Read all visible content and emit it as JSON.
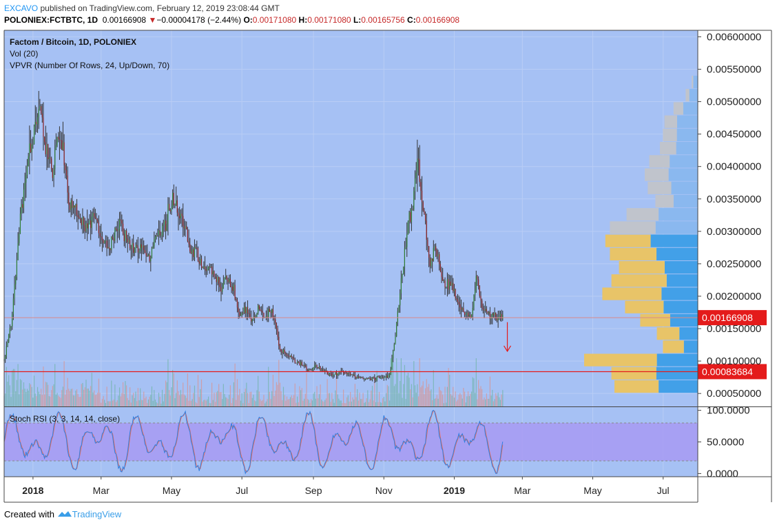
{
  "header": {
    "author": "EXCAVO",
    "published_text": "published on TradingView.com, February 12, 2019 23:08:44 GMT",
    "symbol": "POLONIEX:FCTBTC, 1D",
    "last": "0.00166908",
    "change_arrow": "▼",
    "change": "−0.00004178 (−2.44%)",
    "o_label": "O:",
    "o_value": "0.00171080",
    "h_label": "H:",
    "h_value": "0.00171080",
    "l_label": "L:",
    "l_value": "0.00165756",
    "c_label": "C:",
    "c_value": "0.00166908"
  },
  "legend": {
    "title": "Factom / Bitcoin, 1D, POLONIEX",
    "vol": "Vol (20)",
    "vpvr": "VPVR (Number Of Rows, 24, Up/Down, 70)",
    "stoch": "Stoch RSI (3, 3, 14, 14, close)"
  },
  "footer": {
    "created_with": "Created with",
    "brand": "TradingView"
  },
  "colors": {
    "background": "#a6c1f4",
    "up_candle": "#2e7d32",
    "down_candle": "#8b1f1f",
    "wick": "#333333",
    "vpvr_up_value_area": "#42a0e8",
    "vpvr_down_value_area": "#e8c468",
    "vpvr_up": "#8ab8ef",
    "vpvr_down": "#c0c4cc",
    "last_price_tag": "#e41b1b",
    "horizontal_line": "#e41b1b",
    "stoch_band": "#a79af2",
    "stoch_k": "#2f7fe0",
    "stoch_d": "#e86a5a"
  },
  "chart_data": {
    "type": "candlestick",
    "symbol": "FCTBTC",
    "exchange": "POLONIEX",
    "timeframe": "1D",
    "price_axis": {
      "ylim": [
        0.0003,
        0.0061
      ],
      "ticks": [
        "0.00600000",
        "0.00550000",
        "0.00500000",
        "0.00450000",
        "0.00400000",
        "0.00350000",
        "0.00300000",
        "0.00250000",
        "0.00200000",
        "0.00150000",
        "0.00100000",
        "0.00050000"
      ],
      "tick_values": [
        0.006,
        0.0055,
        0.005,
        0.0045,
        0.004,
        0.0035,
        0.003,
        0.0025,
        0.002,
        0.0015,
        0.001,
        0.0005
      ]
    },
    "time_axis": {
      "labels": [
        "2018",
        "Mar",
        "May",
        "Jul",
        "Sep",
        "Nov",
        "2019",
        "Mar",
        "May",
        "Jul"
      ],
      "bold": [
        "2018",
        "2019"
      ],
      "start": "2017-12-07",
      "end": "2019-07-31",
      "label_dates": [
        "2018-01-01",
        "2018-03-01",
        "2018-05-01",
        "2018-07-01",
        "2018-09-01",
        "2018-11-01",
        "2019-01-01",
        "2019-03-01",
        "2019-05-01",
        "2019-07-01"
      ]
    },
    "price_path": [
      [
        "2017-12-07",
        0.001
      ],
      [
        "2017-12-14",
        0.0017
      ],
      [
        "2017-12-21",
        0.0032
      ],
      [
        "2017-12-28",
        0.0041
      ],
      [
        "2018-01-04",
        0.0047
      ],
      [
        "2018-01-08",
        0.0049
      ],
      [
        "2018-01-12",
        0.0043
      ],
      [
        "2018-01-18",
        0.0038
      ],
      [
        "2018-01-22",
        0.0045
      ],
      [
        "2018-01-28",
        0.0041
      ],
      [
        "2018-02-02",
        0.0034
      ],
      [
        "2018-02-08",
        0.0033
      ],
      [
        "2018-02-15",
        0.0031
      ],
      [
        "2018-02-22",
        0.0032
      ],
      [
        "2018-03-01",
        0.003
      ],
      [
        "2018-03-06",
        0.0027
      ],
      [
        "2018-03-12",
        0.0029
      ],
      [
        "2018-03-18",
        0.0031
      ],
      [
        "2018-03-24",
        0.0028
      ],
      [
        "2018-03-30",
        0.0027
      ],
      [
        "2018-04-06",
        0.0028
      ],
      [
        "2018-04-12",
        0.0026
      ],
      [
        "2018-04-18",
        0.0029
      ],
      [
        "2018-04-24",
        0.003
      ],
      [
        "2018-04-28",
        0.0033
      ],
      [
        "2018-05-02",
        0.0035
      ],
      [
        "2018-05-06",
        0.0033
      ],
      [
        "2018-05-12",
        0.0031
      ],
      [
        "2018-05-18",
        0.0027
      ],
      [
        "2018-05-24",
        0.0026
      ],
      [
        "2018-05-30",
        0.0024
      ],
      [
        "2018-06-06",
        0.0024
      ],
      [
        "2018-06-12",
        0.0021
      ],
      [
        "2018-06-18",
        0.0023
      ],
      [
        "2018-06-24",
        0.0021
      ],
      [
        "2018-06-28",
        0.0017
      ],
      [
        "2018-07-04",
        0.0018
      ],
      [
        "2018-07-10",
        0.0016
      ],
      [
        "2018-07-15",
        0.0018
      ],
      [
        "2018-07-20",
        0.0017
      ],
      [
        "2018-07-27",
        0.0018
      ],
      [
        "2018-08-03",
        0.0012
      ],
      [
        "2018-08-10",
        0.0011
      ],
      [
        "2018-08-16",
        0.001
      ],
      [
        "2018-08-22",
        0.00095
      ],
      [
        "2018-08-28",
        0.00085
      ],
      [
        "2018-09-03",
        0.00092
      ],
      [
        "2018-09-10",
        0.00085
      ],
      [
        "2018-09-17",
        0.00078
      ],
      [
        "2018-09-25",
        0.00082
      ],
      [
        "2018-10-05",
        0.00078
      ],
      [
        "2018-10-15",
        0.00072
      ],
      [
        "2018-10-25",
        0.00074
      ],
      [
        "2018-11-01",
        0.00074
      ],
      [
        "2018-11-06",
        0.0008
      ],
      [
        "2018-11-10",
        0.00125
      ],
      [
        "2018-11-14",
        0.0019
      ],
      [
        "2018-11-18",
        0.0025
      ],
      [
        "2018-11-22",
        0.0031
      ],
      [
        "2018-11-26",
        0.0034
      ],
      [
        "2018-11-30",
        0.0042
      ],
      [
        "2018-12-03",
        0.0037
      ],
      [
        "2018-12-07",
        0.0031
      ],
      [
        "2018-12-11",
        0.0025
      ],
      [
        "2018-12-15",
        0.0028
      ],
      [
        "2018-12-19",
        0.0025
      ],
      [
        "2018-12-23",
        0.0022
      ],
      [
        "2018-12-28",
        0.0022
      ],
      [
        "2019-01-03",
        0.002
      ],
      [
        "2019-01-08",
        0.0018
      ],
      [
        "2019-01-12",
        0.0017
      ],
      [
        "2019-01-16",
        0.0017
      ],
      [
        "2019-01-20",
        0.0023
      ],
      [
        "2019-01-24",
        0.0019
      ],
      [
        "2019-01-30",
        0.0017
      ],
      [
        "2019-02-05",
        0.0017
      ],
      [
        "2019-02-12",
        0.00167
      ]
    ],
    "vpvr": {
      "rows": 24,
      "row_mode": "Up/Down",
      "value_area_percent": 70,
      "price_low": 0.0005,
      "price_high": 0.0054,
      "row_volume_relative": [
        0.55,
        0.57,
        0.75,
        0.23,
        0.27,
        0.38,
        0.48,
        0.63,
        0.57,
        0.52,
        0.58,
        0.61,
        0.58,
        0.47,
        0.28,
        0.33,
        0.35,
        0.32,
        0.25,
        0.23,
        0.22,
        0.16,
        0.08,
        0.04
      ],
      "up_share": [
        0.47,
        0.48,
        0.36,
        0.4,
        0.45,
        0.48,
        0.47,
        0.38,
        0.36,
        0.42,
        0.47,
        0.51,
        0.48,
        0.55,
        0.57,
        0.53,
        0.55,
        0.58,
        0.57,
        0.6,
        0.62,
        0.6,
        0.7,
        0.75
      ],
      "value_area_rows": [
        0,
        1,
        2,
        3,
        4,
        5,
        6,
        7,
        8,
        9,
        10,
        11
      ]
    },
    "volume": {
      "length": 20
    },
    "horizontal_lines": [
      {
        "price": 0.00083684,
        "label": "0.00083684"
      }
    ],
    "last_price": {
      "price": 0.00166908,
      "label": "0.00166908"
    },
    "projection_arrow": {
      "from_date": "2019-02-16",
      "from_price": 0.0016,
      "to_price": 0.00115
    },
    "stoch_rsi": {
      "params": "3, 3, 14, 14, close",
      "ylim": [
        -5,
        105
      ],
      "ticks": [
        "100.0000",
        "50.0000",
        "0.0000"
      ],
      "tick_values": [
        100,
        50,
        0
      ],
      "band": [
        20,
        80
      ]
    }
  }
}
